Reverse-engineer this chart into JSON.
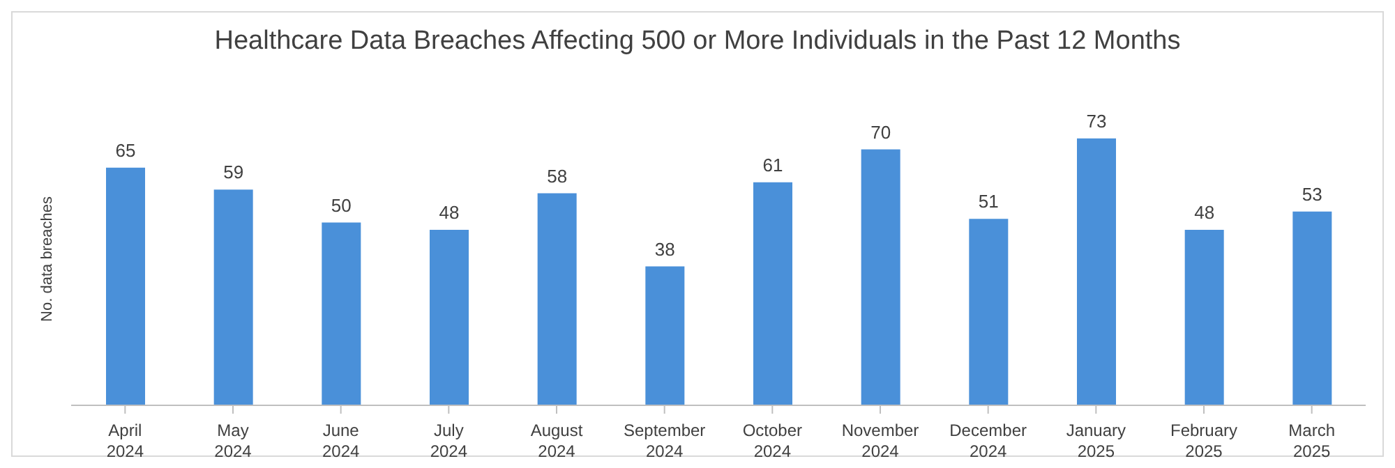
{
  "chart_data": {
    "type": "bar",
    "title": "Healthcare Data Breaches Affecting 500 or More Individuals in the Past 12 Months",
    "ylabel": "No. data breaches",
    "categories": [
      "April 2024",
      "May 2024",
      "June 2024",
      "July 2024",
      "August 2024",
      "September 2024",
      "October 2024",
      "November 2024",
      "December 2024",
      "January 2025",
      "February 2025",
      "March 2025"
    ],
    "values": [
      65,
      59,
      50,
      48,
      58,
      38,
      61,
      70,
      51,
      73,
      48,
      53
    ],
    "color": "#4a90d9",
    "data_labels": true,
    "grid": false
  }
}
